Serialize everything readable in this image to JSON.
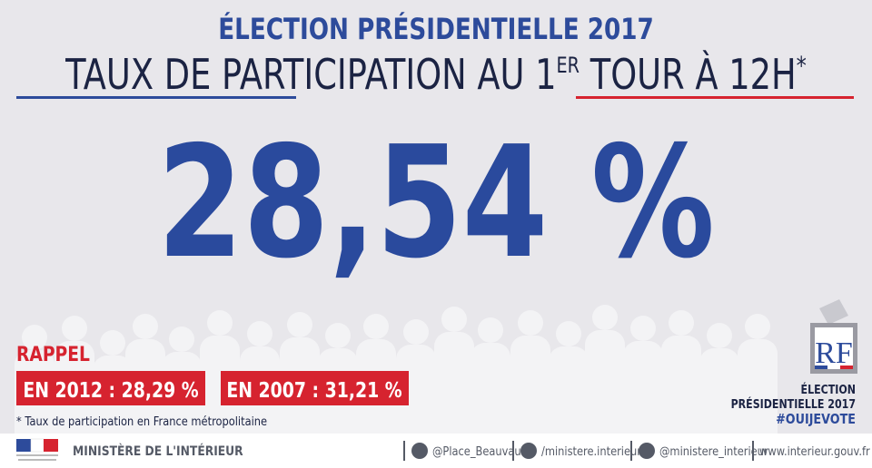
{
  "header": {
    "title": "ÉLECTION PRÉSIDENTIELLE 2017",
    "subtitle_parts": [
      "TAUX DE PARTICIPATION AU 1",
      "ER",
      " TOUR À 12H",
      "*"
    ]
  },
  "main_value": "28,54 %",
  "reminder": {
    "label": "RAPPEL",
    "items": [
      "EN 2012 : 28,29 %",
      "EN 2007 : 31,21 %"
    ],
    "footnote": "* Taux de participation en France métropolitaine"
  },
  "badge": {
    "logo": "RF",
    "lines": [
      "ÉLECTION",
      "PRÉSIDENTIELLE 2017"
    ],
    "hashtag": "#OUIJEVOTE"
  },
  "footer": {
    "ministry": "MINISTÈRE DE L'INTÉRIEUR",
    "links": [
      "@Place_Beauvau",
      "/ministere.interieur",
      "@ministere_interieur",
      "www.interieur.gouv.fr"
    ]
  }
}
